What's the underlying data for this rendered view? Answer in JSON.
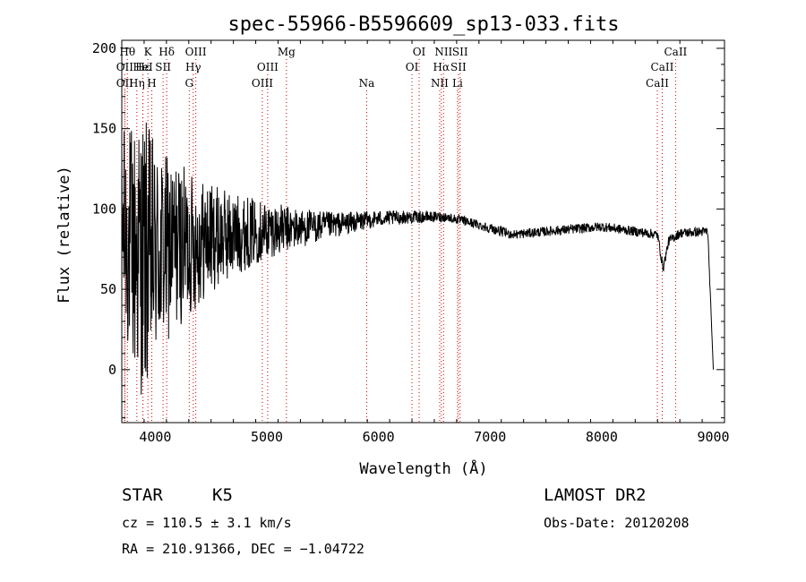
{
  "chart_data": {
    "type": "line",
    "title": "spec-55966-B5596609_sp13-033.fits",
    "xlabel": "Wavelength (Å)",
    "ylabel": "Flux (relative)",
    "xlim": [
      3700,
      9100
    ],
    "ylim": [
      -33,
      205
    ],
    "x_ticks": [
      4000,
      5000,
      6000,
      7000,
      8000,
      9000
    ],
    "y_ticks": [
      0,
      50,
      100,
      150,
      200
    ],
    "grid": false,
    "line_color": "#000000",
    "marker_color": "#cc0000",
    "spectral_lines": [
      {
        "label": "OII",
        "wavelength": 3727,
        "row": 2
      },
      {
        "label": "OII",
        "wavelength": 3727,
        "row": 1
      },
      {
        "label": "Hθ",
        "wavelength": 3750,
        "row": 0
      },
      {
        "label": "Hη",
        "wavelength": 3835,
        "row": 2
      },
      {
        "label": "Hε",
        "wavelength": 3889,
        "row": 1
      },
      {
        "label": "K",
        "wavelength": 3934,
        "row": 0
      },
      {
        "label": "H",
        "wavelength": 3969,
        "row": 2
      },
      {
        "label": "HeI",
        "wavelength": 3889,
        "row": 1
      },
      {
        "label": "SII",
        "wavelength": 4070,
        "row": 1
      },
      {
        "label": "Hδ",
        "wavelength": 4102,
        "row": 0
      },
      {
        "label": "G",
        "wavelength": 4304,
        "row": 2
      },
      {
        "label": "Hγ",
        "wavelength": 4340,
        "row": 1
      },
      {
        "label": "OIII",
        "wavelength": 4363,
        "row": 0
      },
      {
        "label": "OIII",
        "wavelength": 4959,
        "row": 2
      },
      {
        "label": "OIII",
        "wavelength": 5007,
        "row": 1
      },
      {
        "label": "Mg",
        "wavelength": 5175,
        "row": 0
      },
      {
        "label": "Na",
        "wavelength": 5894,
        "row": 2
      },
      {
        "label": "OI",
        "wavelength": 6300,
        "row": 1
      },
      {
        "label": "OI",
        "wavelength": 6364,
        "row": 0
      },
      {
        "label": "NII",
        "wavelength": 6548,
        "row": 2
      },
      {
        "label": "NII",
        "wavelength": 6583,
        "row": 0
      },
      {
        "label": "Hα",
        "wavelength": 6563,
        "row": 1
      },
      {
        "label": "Li",
        "wavelength": 6708,
        "row": 2
      },
      {
        "label": "SII",
        "wavelength": 6716,
        "row": 1
      },
      {
        "label": "SII",
        "wavelength": 6731,
        "row": 0
      },
      {
        "label": "CaII",
        "wavelength": 8498,
        "row": 2
      },
      {
        "label": "CaII",
        "wavelength": 8542,
        "row": 1
      },
      {
        "label": "CaII",
        "wavelength": 8662,
        "row": 0
      }
    ],
    "spectrum_anchors": {
      "x": [
        3700,
        3800,
        3900,
        4000,
        4100,
        4200,
        4300,
        4400,
        4500,
        4700,
        5000,
        5300,
        5600,
        6000,
        6300,
        6600,
        6800,
        7000,
        7200,
        7500,
        8000,
        8300,
        8500,
        8550,
        8600,
        8700,
        8950,
        9000
      ],
      "y": [
        90,
        75,
        70,
        72,
        74,
        78,
        78,
        80,
        82,
        84,
        87,
        88,
        90,
        94,
        95,
        95,
        92,
        88,
        84,
        86,
        89,
        86,
        84,
        63,
        80,
        85,
        86,
        0
      ],
      "noise": [
        60,
        80,
        90,
        70,
        60,
        52,
        46,
        40,
        34,
        26,
        18,
        12,
        8,
        5,
        4,
        3,
        3,
        3,
        3,
        3,
        3,
        3,
        3,
        3,
        3,
        3,
        3,
        0
      ]
    }
  },
  "info": {
    "object_type": "STAR",
    "subclass": "K5",
    "survey": "LAMOST DR2",
    "redshift": "cz = 110.5 ± 3.1 km/s",
    "obs_date": "Obs-Date: 20120208",
    "coords": "RA = 210.91366, DEC =  −1.04722"
  }
}
